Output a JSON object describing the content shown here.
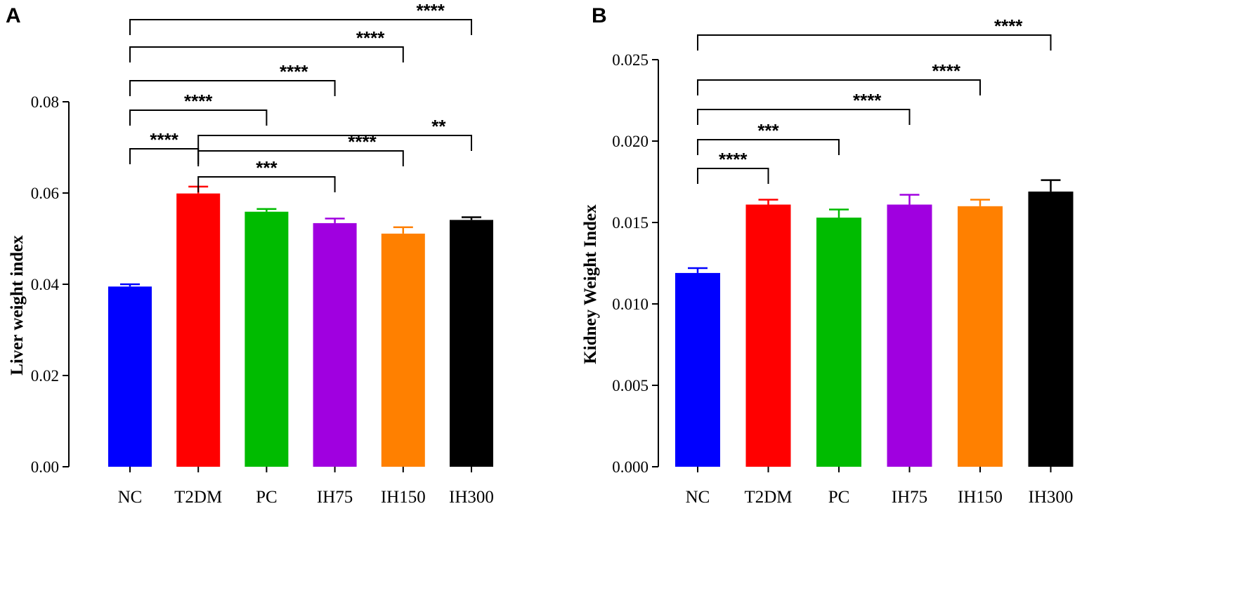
{
  "figure": {
    "panels": [
      "A",
      "B"
    ]
  },
  "chart_data": [
    {
      "type": "bar",
      "panel": "A",
      "title": "",
      "xlabel": "",
      "ylabel": "Liver weight index",
      "ylim": [
        0,
        0.08
      ],
      "yticks": [
        0.0,
        0.02,
        0.04,
        0.06,
        0.08
      ],
      "ytick_labels": [
        "0.00",
        "0.02",
        "0.04",
        "0.06",
        "0.08"
      ],
      "categories": [
        "NC",
        "T2DM",
        "PC",
        "IH75",
        "IH150",
        "IH300"
      ],
      "values": [
        0.0395,
        0.0599,
        0.0559,
        0.0534,
        0.0511,
        0.0541
      ],
      "errors": [
        0.0005,
        0.0015,
        0.0006,
        0.001,
        0.0014,
        0.0006
      ],
      "colors": [
        "#0000ff",
        "#ff0000",
        "#00bb00",
        "#a000e0",
        "#ff8000",
        "#000000"
      ],
      "comparisons": [
        {
          "from": 0,
          "to": 5,
          "label": "****"
        },
        {
          "from": 0,
          "to": 4,
          "label": "****"
        },
        {
          "from": 0,
          "to": 3,
          "label": "****"
        },
        {
          "from": 0,
          "to": 2,
          "label": "****"
        },
        {
          "from": 0,
          "to": 1,
          "label": "****"
        },
        {
          "from": 1,
          "to": 5,
          "label": "**"
        },
        {
          "from": 1,
          "to": 4,
          "label": "****"
        },
        {
          "from": 1,
          "to": 3,
          "label": "***"
        }
      ]
    },
    {
      "type": "bar",
      "panel": "B",
      "title": "",
      "xlabel": "",
      "ylabel": "Kidney Weight Index",
      "ylim": [
        0,
        0.025
      ],
      "yticks": [
        0.0,
        0.005,
        0.01,
        0.015,
        0.02,
        0.025
      ],
      "ytick_labels": [
        "0.000",
        "0.005",
        "0.010",
        "0.015",
        "0.020",
        "0.025"
      ],
      "categories": [
        "NC",
        "T2DM",
        "PC",
        "IH75",
        "IH150",
        "IH300"
      ],
      "values": [
        0.0119,
        0.0161,
        0.0153,
        0.0161,
        0.016,
        0.0169
      ],
      "errors": [
        0.0003,
        0.0003,
        0.0005,
        0.0006,
        0.0004,
        0.0007
      ],
      "colors": [
        "#0000ff",
        "#ff0000",
        "#00bb00",
        "#a000e0",
        "#ff8000",
        "#000000"
      ],
      "comparisons": [
        {
          "from": 0,
          "to": 5,
          "label": "****"
        },
        {
          "from": 0,
          "to": 4,
          "label": "****"
        },
        {
          "from": 0,
          "to": 3,
          "label": "****"
        },
        {
          "from": 0,
          "to": 2,
          "label": "***"
        },
        {
          "from": 0,
          "to": 1,
          "label": "****"
        }
      ]
    }
  ]
}
